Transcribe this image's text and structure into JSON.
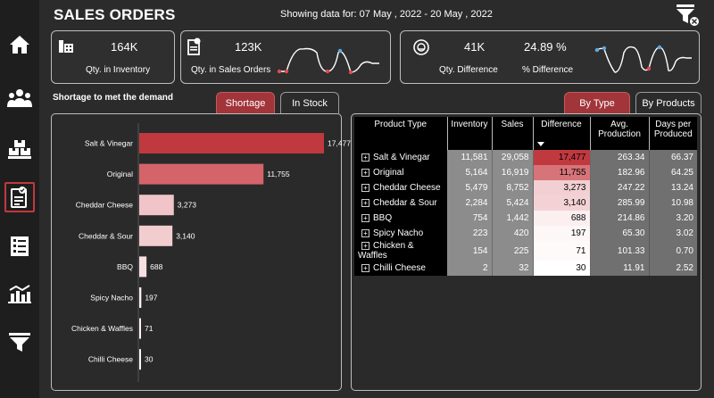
{
  "header": {
    "title": "SALES ORDERS",
    "date_range": "Showing data for: 07 May , 2022 - 20 May , 2022"
  },
  "sidebar": {
    "items": [
      {
        "icon": "home-icon"
      },
      {
        "icon": "people-icon"
      },
      {
        "icon": "inventory-icon"
      },
      {
        "icon": "sales-order-icon",
        "active": true
      },
      {
        "icon": "checklist-icon"
      },
      {
        "icon": "bar-chart-icon"
      },
      {
        "icon": "filter-icon"
      }
    ]
  },
  "kpis": {
    "inventory": {
      "value": "164K",
      "label": "Qty. in Inventory"
    },
    "sales_orders": {
      "value": "123K",
      "label": "Qty. in Sales Orders"
    },
    "difference": {
      "value": "41K",
      "label": "Qty. Difference"
    },
    "pct_difference": {
      "value": "24.89 %",
      "label": "% Difference"
    }
  },
  "shortage_section": {
    "title": "Shortage to met the demand",
    "tabs": [
      "Shortage",
      "In Stock"
    ]
  },
  "table_tabs": [
    "By Type",
    "By Products"
  ],
  "chart_data": {
    "type": "bar",
    "orientation": "horizontal",
    "categories": [
      "Salt & Vinegar",
      "Original",
      "Cheddar Cheese",
      "Cheddar & Sour",
      "BBQ",
      "Spicy Nacho",
      "Chicken & Waffles",
      "Chilli Cheese"
    ],
    "values": [
      17477,
      11755,
      3273,
      3140,
      688,
      197,
      71,
      30
    ],
    "labels": [
      "17,477",
      "11,755",
      "3,273",
      "3,140",
      "688",
      "197",
      "71",
      "30"
    ],
    "colors": [
      "#c0393f",
      "#d5646a",
      "#f0c4c8",
      "#f2cdd0",
      "#f7e0e2",
      "#fbeeef",
      "#fcf3f4",
      "#fdf7f7"
    ],
    "xlim": [
      0,
      17477
    ]
  },
  "table": {
    "headers": [
      "Product Type",
      "Inventory",
      "Sales",
      "Difference",
      "Avg. Production",
      "Days per Produced"
    ],
    "rows": [
      {
        "type": "Salt & Vinegar",
        "inventory": "11,581",
        "sales": "29,058",
        "difference": "17,477",
        "avg": "263.34",
        "days": "66.37",
        "color": "#c0393f"
      },
      {
        "type": "Original",
        "inventory": "5,164",
        "sales": "16,919",
        "difference": "11,755",
        "avg": "182.96",
        "days": "64.25",
        "color": "#d77479"
      },
      {
        "type": "Cheddar Cheese",
        "inventory": "5,479",
        "sales": "8,752",
        "difference": "3,273",
        "avg": "247.22",
        "days": "13.24",
        "color": "#f2cfd2"
      },
      {
        "type": "Cheddar & Sour",
        "inventory": "2,284",
        "sales": "5,424",
        "difference": "3,140",
        "avg": "285.99",
        "days": "10.98",
        "color": "#f3d2d5"
      },
      {
        "type": "BBQ",
        "inventory": "754",
        "sales": "1,442",
        "difference": "688",
        "avg": "214.86",
        "days": "3.20",
        "color": "#fbeff0"
      },
      {
        "type": "Spicy Nacho",
        "inventory": "223",
        "sales": "420",
        "difference": "197",
        "avg": "65.30",
        "days": "3.02",
        "color": "#fdf7f7"
      },
      {
        "type": "Chicken & Waffles",
        "inventory": "154",
        "sales": "225",
        "difference": "71",
        "avg": "101.33",
        "days": "0.70",
        "color": "#fefafa"
      },
      {
        "type": "Chilli Cheese",
        "inventory": "2",
        "sales": "32",
        "difference": "30",
        "avg": "11.91",
        "days": "2.52",
        "color": "#ffffff"
      }
    ]
  }
}
